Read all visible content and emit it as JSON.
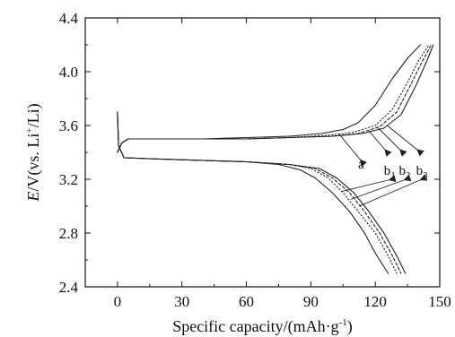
{
  "chart_data": {
    "type": "line",
    "title": "",
    "xlabel_text": "Specific capacity/(mAh·g",
    "xlabel_sup": "-1",
    "xlabel_end": ")",
    "ylabel_italic": "E",
    "ylabel_rest": "/V(vs. Li",
    "ylabel_sup": "+",
    "ylabel_end": "/Li)",
    "xlim": [
      -15,
      150
    ],
    "ylim": [
      2.4,
      4.4
    ],
    "xticks": [
      0,
      30,
      60,
      90,
      120,
      150
    ],
    "yticks": [
      2.4,
      2.8,
      3.2,
      3.6,
      4.0,
      4.4
    ],
    "xtick_labels": [
      "0",
      "30",
      "60",
      "90",
      "120",
      "150"
    ],
    "ytick_labels": [
      "2.4",
      "2.8",
      "3.2",
      "3.6",
      "4.0",
      "4.4"
    ],
    "grid": false,
    "legend": "none",
    "series": [
      {
        "label": "a",
        "style": "solid",
        "charge": [
          [
            0,
            3.4
          ],
          [
            2,
            3.47
          ],
          [
            5,
            3.5
          ],
          [
            20,
            3.5
          ],
          [
            40,
            3.5
          ],
          [
            60,
            3.51
          ],
          [
            80,
            3.52
          ],
          [
            95,
            3.54
          ],
          [
            105,
            3.57
          ],
          [
            112,
            3.62
          ],
          [
            120,
            3.75
          ],
          [
            128,
            3.95
          ],
          [
            135,
            4.1
          ],
          [
            141,
            4.2
          ]
        ],
        "discharge": [
          [
            0,
            3.7
          ],
          [
            0.5,
            3.45
          ],
          [
            3,
            3.36
          ],
          [
            20,
            3.35
          ],
          [
            40,
            3.34
          ],
          [
            60,
            3.33
          ],
          [
            75,
            3.31
          ],
          [
            85,
            3.27
          ],
          [
            92,
            3.21
          ],
          [
            100,
            3.1
          ],
          [
            108,
            2.96
          ],
          [
            115,
            2.8
          ],
          [
            120,
            2.65
          ],
          [
            126,
            2.5
          ]
        ]
      },
      {
        "label": "b1",
        "style": "dotted",
        "charge": [
          [
            0,
            3.4
          ],
          [
            2,
            3.47
          ],
          [
            5,
            3.5
          ],
          [
            20,
            3.5
          ],
          [
            40,
            3.5
          ],
          [
            60,
            3.5
          ],
          [
            80,
            3.51
          ],
          [
            100,
            3.53
          ],
          [
            110,
            3.55
          ],
          [
            120,
            3.6
          ],
          [
            128,
            3.72
          ],
          [
            135,
            3.92
          ],
          [
            140,
            4.08
          ],
          [
            145,
            4.2
          ]
        ],
        "discharge": [
          [
            0,
            3.7
          ],
          [
            0.5,
            3.45
          ],
          [
            3,
            3.36
          ],
          [
            20,
            3.35
          ],
          [
            40,
            3.34
          ],
          [
            60,
            3.33
          ],
          [
            80,
            3.31
          ],
          [
            90,
            3.28
          ],
          [
            98,
            3.21
          ],
          [
            105,
            3.1
          ],
          [
            112,
            2.96
          ],
          [
            120,
            2.8
          ],
          [
            126,
            2.63
          ],
          [
            130,
            2.5
          ]
        ]
      },
      {
        "label": "b2",
        "style": "dashed",
        "charge": [
          [
            0,
            3.4
          ],
          [
            2,
            3.47
          ],
          [
            5,
            3.5
          ],
          [
            20,
            3.5
          ],
          [
            40,
            3.5
          ],
          [
            60,
            3.5
          ],
          [
            80,
            3.51
          ],
          [
            100,
            3.52
          ],
          [
            112,
            3.54
          ],
          [
            122,
            3.59
          ],
          [
            130,
            3.7
          ],
          [
            137,
            3.92
          ],
          [
            142,
            4.08
          ],
          [
            146,
            4.2
          ]
        ],
        "discharge": [
          [
            0,
            3.7
          ],
          [
            0.5,
            3.45
          ],
          [
            3,
            3.36
          ],
          [
            20,
            3.35
          ],
          [
            40,
            3.34
          ],
          [
            60,
            3.33
          ],
          [
            80,
            3.31
          ],
          [
            92,
            3.28
          ],
          [
            100,
            3.21
          ],
          [
            108,
            3.1
          ],
          [
            115,
            2.96
          ],
          [
            122,
            2.8
          ],
          [
            128,
            2.63
          ],
          [
            132,
            2.5
          ]
        ]
      },
      {
        "label": "b3",
        "style": "solid",
        "charge": [
          [
            0,
            3.4
          ],
          [
            2,
            3.47
          ],
          [
            5,
            3.5
          ],
          [
            20,
            3.5
          ],
          [
            40,
            3.5
          ],
          [
            60,
            3.5
          ],
          [
            80,
            3.51
          ],
          [
            100,
            3.52
          ],
          [
            114,
            3.54
          ],
          [
            124,
            3.58
          ],
          [
            132,
            3.68
          ],
          [
            139,
            3.9
          ],
          [
            144,
            4.08
          ],
          [
            147,
            4.2
          ]
        ],
        "discharge": [
          [
            0,
            3.7
          ],
          [
            0.5,
            3.45
          ],
          [
            3,
            3.36
          ],
          [
            20,
            3.35
          ],
          [
            40,
            3.34
          ],
          [
            60,
            3.33
          ],
          [
            80,
            3.31
          ],
          [
            94,
            3.28
          ],
          [
            102,
            3.21
          ],
          [
            110,
            3.1
          ],
          [
            117,
            2.96
          ],
          [
            124,
            2.8
          ],
          [
            130,
            2.63
          ],
          [
            134,
            2.5
          ]
        ]
      }
    ],
    "annotations": [
      {
        "base": "a",
        "sub": "",
        "at": [
          112,
          3.28
        ],
        "from": [
          [
            113,
            3.345
          ]
        ],
        "to": [
          [
            103,
            3.54
          ],
          [
            102,
            3.25
          ]
        ]
      },
      {
        "base": "b",
        "sub": "1",
        "at": [
          124,
          3.235
        ],
        "from": [
          [
            124.5,
            3.42
          ],
          [
            126.5,
            3.195
          ]
        ],
        "to": [
          [
            117,
            3.56
          ],
          [
            104.5,
            3.11
          ]
        ]
      },
      {
        "base": "b",
        "sub": "2",
        "at": [
          131,
          3.235
        ],
        "from": [
          [
            131.5,
            3.42
          ],
          [
            133.5,
            3.195
          ]
        ],
        "to": [
          [
            121.5,
            3.58
          ],
          [
            108.5,
            3.05
          ]
        ]
      },
      {
        "base": "b",
        "sub": "3",
        "at": [
          139,
          3.235
        ],
        "from": [
          [
            139.5,
            3.42
          ],
          [
            141,
            3.195
          ]
        ],
        "to": [
          [
            125.5,
            3.6
          ],
          [
            112.5,
            3.0
          ]
        ]
      }
    ]
  }
}
